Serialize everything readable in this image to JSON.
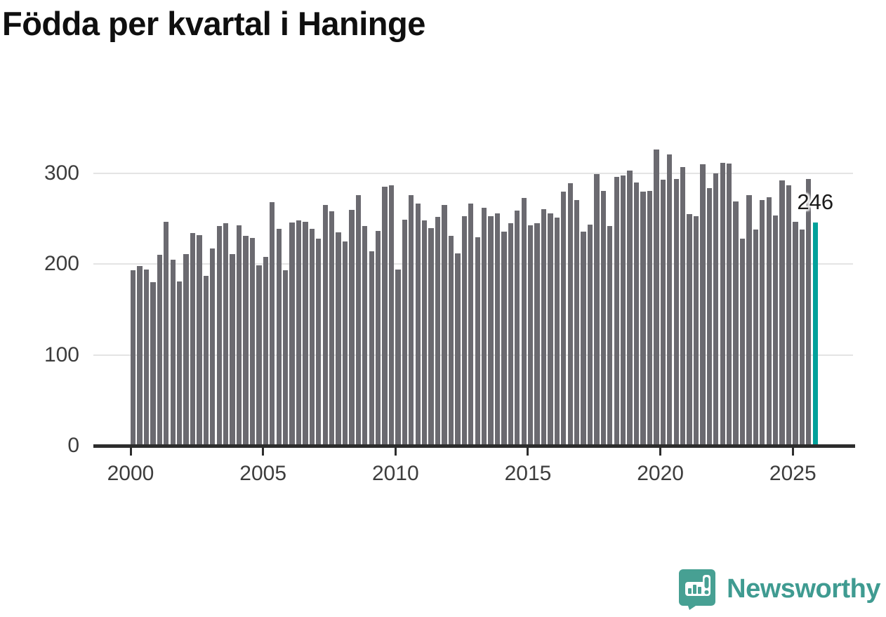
{
  "title": "Födda per kvartal i Haninge",
  "annotation": {
    "label": "246"
  },
  "branding": {
    "wordmark": "Newsworthy"
  },
  "colors": {
    "bar": "#6b6a70",
    "highlight": "#00a19a",
    "grid": "#e4e4e4",
    "axis": "#2d2d2d",
    "tick_label": "#3d3d3d",
    "title": "#0f0f0f",
    "brand_teal": "#47a093"
  },
  "chart_data": {
    "type": "bar",
    "title": "Födda per kvartal i Haninge",
    "xlabel": "",
    "ylabel": "",
    "x_start": "2000Q1",
    "x_end": "2025Q4",
    "x_tick_labels": [
      "2000",
      "2005",
      "2010",
      "2015",
      "2020",
      "2025"
    ],
    "y_ticks": [
      0,
      100,
      200,
      300
    ],
    "ylim": [
      0,
      340
    ],
    "grid": "horizontal",
    "legend": "none",
    "highlight_last_bar": true,
    "last_bar_label": "246",
    "values": [
      193,
      198,
      194,
      180,
      210,
      247,
      205,
      181,
      211,
      234,
      232,
      187,
      217,
      242,
      245,
      211,
      243,
      231,
      229,
      199,
      208,
      268,
      239,
      193,
      246,
      248,
      247,
      239,
      228,
      265,
      258,
      235,
      225,
      260,
      276,
      242,
      214,
      237,
      285,
      287,
      194,
      249,
      276,
      267,
      248,
      240,
      252,
      265,
      231,
      212,
      253,
      267,
      230,
      262,
      253,
      256,
      236,
      245,
      259,
      273,
      243,
      245,
      261,
      256,
      251,
      280,
      289,
      271,
      236,
      244,
      299,
      281,
      242,
      296,
      298,
      303,
      290,
      280,
      281,
      326,
      293,
      321,
      294,
      307,
      255,
      253,
      310,
      284,
      300,
      312,
      311,
      269,
      228,
      276,
      238,
      271,
      274,
      254,
      292,
      287,
      247,
      238,
      294,
      246
    ]
  }
}
